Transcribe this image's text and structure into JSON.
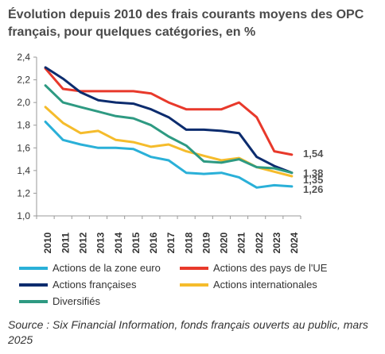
{
  "chart_data": {
    "type": "line",
    "title": "Évolution depuis 2010 des frais courants moyens des OPC français, pour quelques catégories, en %",
    "x": [
      "2010",
      "2011",
      "2012",
      "2013",
      "2014",
      "2015",
      "2016",
      "2017",
      "2018",
      "2019",
      "2020",
      "2021",
      "2022",
      "2023",
      "2024"
    ],
    "ylim": [
      1.0,
      2.4
    ],
    "yticks": [
      "1,0",
      "1,2",
      "1,4",
      "1,6",
      "1,8",
      "2,0",
      "2,2",
      "2,4"
    ],
    "grid": false,
    "legend_position": "bottom",
    "series": [
      {
        "name": "Actions de la zone euro",
        "color": "#2ab0d8",
        "values": [
          1.83,
          1.67,
          1.63,
          1.6,
          1.6,
          1.59,
          1.52,
          1.49,
          1.38,
          1.37,
          1.38,
          1.34,
          1.25,
          1.27,
          1.26
        ],
        "end_label": "1,26"
      },
      {
        "name": "Actions des pays de l'UE",
        "color": "#e8392b",
        "values": [
          2.3,
          2.12,
          2.1,
          2.1,
          2.1,
          2.1,
          2.08,
          2.0,
          1.94,
          1.94,
          1.94,
          2.0,
          1.87,
          1.57,
          1.54
        ],
        "end_label": "1,54"
      },
      {
        "name": "Actions françaises",
        "color": "#0c2c6e",
        "values": [
          2.31,
          2.21,
          2.09,
          2.02,
          2.0,
          1.99,
          1.94,
          1.87,
          1.76,
          1.76,
          1.75,
          1.73,
          1.52,
          1.44,
          1.38
        ],
        "end_label": "1,38"
      },
      {
        "name": "Actions internationales",
        "color": "#f5bc2c",
        "values": [
          1.96,
          1.82,
          1.73,
          1.75,
          1.67,
          1.65,
          1.61,
          1.63,
          1.57,
          1.53,
          1.49,
          1.51,
          1.43,
          1.39,
          1.35
        ],
        "end_label": "1,35"
      },
      {
        "name": "Diversifiés",
        "color": "#2e9a82",
        "values": [
          2.15,
          2.0,
          1.96,
          1.92,
          1.88,
          1.86,
          1.8,
          1.7,
          1.62,
          1.48,
          1.47,
          1.5,
          1.43,
          1.42,
          1.38
        ],
        "end_label": ""
      }
    ]
  },
  "source": "Source : Six Financial Information, fonds français ouverts au public, mars 2025"
}
